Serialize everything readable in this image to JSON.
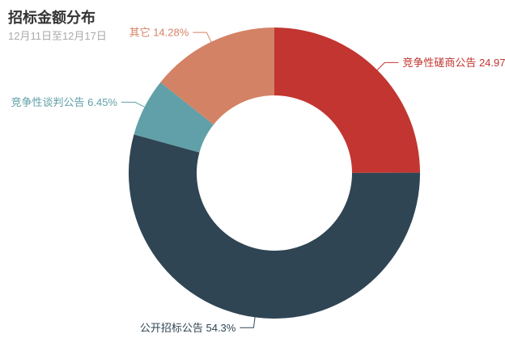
{
  "header": {
    "title": "招标金额分布",
    "subtitle": "12月11日至12月17日"
  },
  "chart_data": {
    "type": "pie",
    "variant": "donut",
    "title": "招标金额分布",
    "subtitle": "12月11日至12月17日",
    "unit": "%",
    "start_angle_deg": 0,
    "clockwise": true,
    "grid": false,
    "legend_position": "none",
    "label_style": "outside-callout",
    "slices": [
      {
        "id": "competitive-consultation",
        "name": "竞争性磋商公告",
        "value": 24.97,
        "color": "#c23531"
      },
      {
        "id": "open-tender",
        "name": "公开招标公告",
        "value": 54.3,
        "color": "#2f4554"
      },
      {
        "id": "competitive-negotiation",
        "name": "竞争性谈判公告",
        "value": 6.45,
        "color": "#61a0a8"
      },
      {
        "id": "other",
        "name": "其它",
        "value": 14.28,
        "color": "#d48265"
      }
    ]
  },
  "styles": {
    "background": "#ffffff",
    "title_color": "#333333",
    "subtitle_color": "#aaaaaa"
  }
}
